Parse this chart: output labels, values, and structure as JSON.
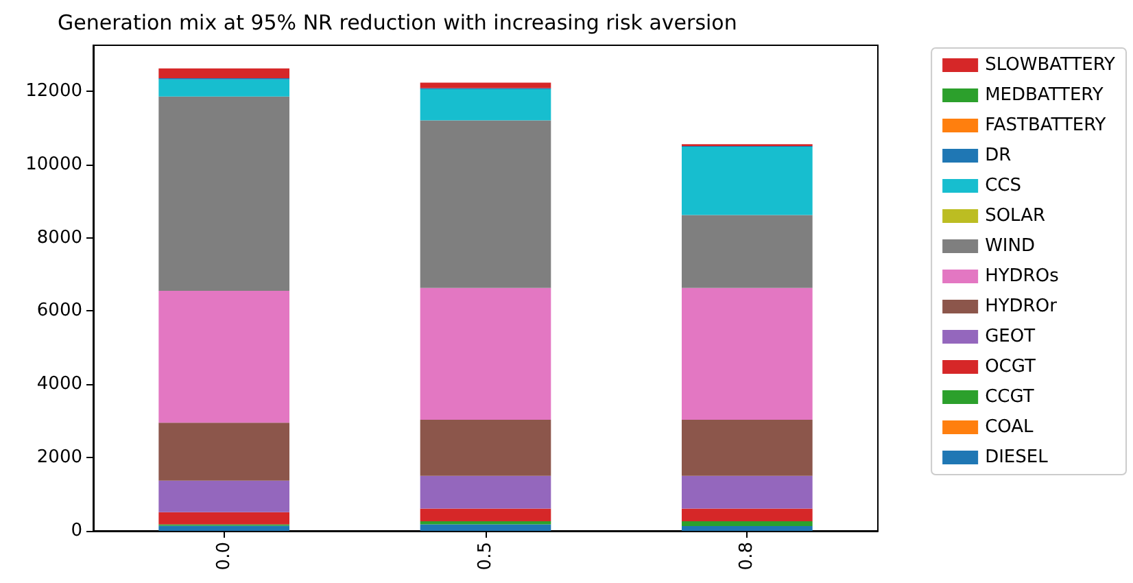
{
  "chart_data": {
    "type": "bar",
    "title": "Generation mix at 95% NR reduction with increasing risk aversion",
    "categories": [
      "0.0",
      "0.5",
      "0.8"
    ],
    "stacked": true,
    "legend": "right",
    "grid": false,
    "ylim": [
      0,
      13250
    ],
    "yticks": [
      0,
      2000,
      4000,
      6000,
      8000,
      10000,
      12000
    ],
    "series": [
      {
        "name": "DIESEL",
        "color": "#1f77b4",
        "values": [
          140,
          180,
          130
        ]
      },
      {
        "name": "COAL",
        "color": "#ff7f0e",
        "values": [
          0,
          0,
          0
        ]
      },
      {
        "name": "CCGT",
        "color": "#2ca02c",
        "values": [
          40,
          80,
          130
        ]
      },
      {
        "name": "OCGT",
        "color": "#d62728",
        "values": [
          330,
          350,
          350
        ]
      },
      {
        "name": "GEOT",
        "color": "#9467bd",
        "values": [
          860,
          890,
          890
        ]
      },
      {
        "name": "HYDROr",
        "color": "#8c564b",
        "values": [
          1580,
          1530,
          1530
        ]
      },
      {
        "name": "HYDROs",
        "color": "#e377c2",
        "values": [
          3600,
          3600,
          3600
        ]
      },
      {
        "name": "WIND",
        "color": "#7f7f7f",
        "values": [
          5300,
          4570,
          1990
        ]
      },
      {
        "name": "SOLAR",
        "color": "#bcbd22",
        "values": [
          0,
          0,
          0
        ]
      },
      {
        "name": "CCS",
        "color": "#17becf",
        "values": [
          470,
          850,
          1860
        ]
      },
      {
        "name": "DR",
        "color": "#1f77b4",
        "values": [
          30,
          30,
          20
        ]
      },
      {
        "name": "FASTBATTERY",
        "color": "#ff7f0e",
        "values": [
          0,
          0,
          0
        ]
      },
      {
        "name": "MEDBATTERY",
        "color": "#2ca02c",
        "values": [
          0,
          0,
          0
        ]
      },
      {
        "name": "SLOWBATTERY",
        "color": "#d62728",
        "values": [
          270,
          150,
          50
        ]
      }
    ]
  }
}
